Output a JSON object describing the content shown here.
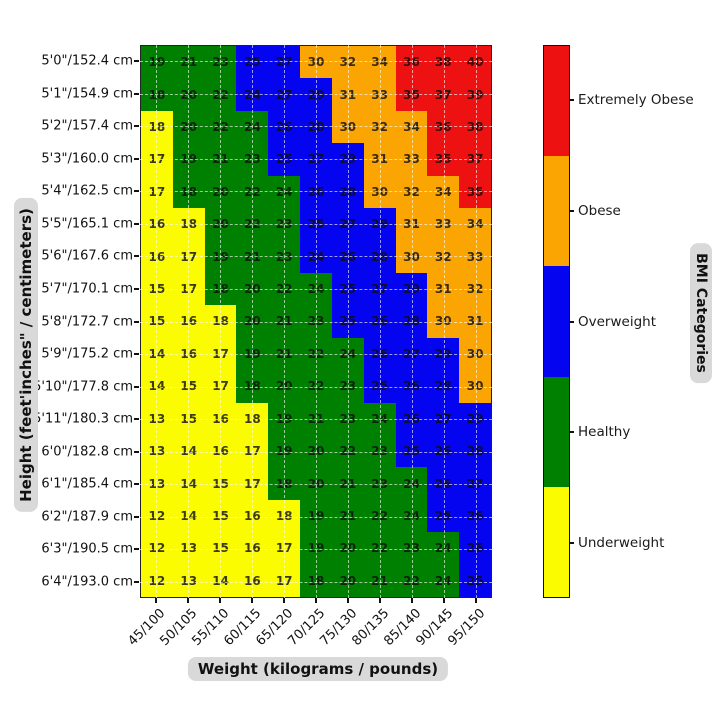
{
  "chart_data": {
    "type": "heatmap",
    "xlabel": "Weight (kilograms / pounds)",
    "ylabel": "Height (feet'inches\" / centimeters)",
    "colorbar_label": "BMI Categories",
    "x_tick_labels": [
      "45/100",
      "50/105",
      "55/110",
      "60/115",
      "65/120",
      "70/125",
      "75/130",
      "80/135",
      "85/140",
      "90/145",
      "95/150"
    ],
    "y_tick_labels": [
      "5'0\"/152.4 cm",
      "5'1\"/154.9 cm",
      "5'2\"/157.4 cm",
      "5'3\"/160.0 cm",
      "5'4\"/162.5 cm",
      "5'5\"/165.1 cm",
      "5'6\"/167.6 cm",
      "5'7\"/170.1 cm",
      "5'8\"/172.7 cm",
      "5'9\"/175.2 cm",
      "5'10\"/177.8 cm",
      "5'11\"/180.3 cm",
      "6'0\"/182.8 cm",
      "6'1\"/185.4 cm",
      "6'2\"/187.9 cm",
      "6'3\"/190.5 cm",
      "6'4\"/193.0 cm"
    ],
    "values": [
      [
        19,
        21,
        23,
        25,
        27,
        30,
        32,
        34,
        36,
        38,
        40
      ],
      [
        18,
        20,
        22,
        24,
        27,
        29,
        31,
        33,
        35,
        37,
        39
      ],
      [
        18,
        20,
        22,
        24,
        26,
        28,
        30,
        32,
        34,
        36,
        38
      ],
      [
        17,
        19,
        21,
        23,
        25,
        27,
        29,
        31,
        33,
        35,
        37
      ],
      [
        17,
        18,
        20,
        22,
        24,
        26,
        28,
        30,
        32,
        34,
        35
      ],
      [
        16,
        18,
        20,
        22,
        23,
        25,
        27,
        29,
        31,
        33,
        34
      ],
      [
        16,
        17,
        19,
        21,
        23,
        24,
        26,
        28,
        30,
        32,
        33
      ],
      [
        15,
        17,
        18,
        20,
        22,
        24,
        25,
        27,
        29,
        31,
        32
      ],
      [
        15,
        16,
        18,
        20,
        21,
        23,
        25,
        26,
        28,
        30,
        31
      ],
      [
        14,
        16,
        17,
        19,
        21,
        22,
        24,
        26,
        27,
        29,
        30
      ],
      [
        14,
        15,
        17,
        18,
        20,
        22,
        23,
        25,
        26,
        28,
        30
      ],
      [
        13,
        15,
        16,
        18,
        19,
        21,
        23,
        24,
        26,
        27,
        29
      ],
      [
        13,
        14,
        16,
        17,
        19,
        20,
        22,
        23,
        25,
        26,
        28
      ],
      [
        13,
        14,
        15,
        17,
        18,
        20,
        21,
        23,
        24,
        26,
        27
      ],
      [
        12,
        14,
        15,
        16,
        18,
        19,
        21,
        22,
        24,
        25,
        26
      ],
      [
        12,
        13,
        15,
        16,
        17,
        19,
        20,
        22,
        23,
        24,
        26
      ],
      [
        12,
        13,
        14,
        16,
        17,
        18,
        20,
        21,
        22,
        24,
        25
      ]
    ],
    "cell_categories": [
      [
        "h",
        "h",
        "h",
        "w",
        "w",
        "o",
        "o",
        "o",
        "e",
        "e",
        "e"
      ],
      [
        "h",
        "h",
        "h",
        "w",
        "w",
        "w",
        "o",
        "o",
        "e",
        "e",
        "e"
      ],
      [
        "u",
        "h",
        "h",
        "h",
        "w",
        "w",
        "o",
        "o",
        "o",
        "e",
        "e"
      ],
      [
        "u",
        "h",
        "h",
        "h",
        "w",
        "w",
        "w",
        "o",
        "o",
        "e",
        "e"
      ],
      [
        "u",
        "h",
        "h",
        "h",
        "h",
        "w",
        "w",
        "o",
        "o",
        "o",
        "e"
      ],
      [
        "u",
        "u",
        "h",
        "h",
        "h",
        "w",
        "w",
        "w",
        "o",
        "o",
        "o"
      ],
      [
        "u",
        "u",
        "h",
        "h",
        "h",
        "w",
        "w",
        "w",
        "o",
        "o",
        "o"
      ],
      [
        "u",
        "u",
        "h",
        "h",
        "h",
        "h",
        "w",
        "w",
        "w",
        "o",
        "o"
      ],
      [
        "u",
        "u",
        "u",
        "h",
        "h",
        "h",
        "w",
        "w",
        "w",
        "o",
        "o"
      ],
      [
        "u",
        "u",
        "u",
        "h",
        "h",
        "h",
        "h",
        "w",
        "w",
        "w",
        "o"
      ],
      [
        "u",
        "u",
        "u",
        "h",
        "h",
        "h",
        "h",
        "w",
        "w",
        "w",
        "o"
      ],
      [
        "u",
        "u",
        "u",
        "u",
        "h",
        "h",
        "h",
        "h",
        "w",
        "w",
        "w"
      ],
      [
        "u",
        "u",
        "u",
        "u",
        "h",
        "h",
        "h",
        "h",
        "w",
        "w",
        "w"
      ],
      [
        "u",
        "u",
        "u",
        "u",
        "h",
        "h",
        "h",
        "h",
        "h",
        "w",
        "w"
      ],
      [
        "u",
        "u",
        "u",
        "u",
        "u",
        "h",
        "h",
        "h",
        "h",
        "w",
        "w"
      ],
      [
        "u",
        "u",
        "u",
        "u",
        "u",
        "h",
        "h",
        "h",
        "h",
        "h",
        "w"
      ],
      [
        "u",
        "u",
        "u",
        "u",
        "u",
        "h",
        "h",
        "h",
        "h",
        "h",
        "w"
      ]
    ],
    "category_legend": [
      {
        "code": "e",
        "label": "Extremely Obese",
        "color": "#ee1111"
      },
      {
        "code": "o",
        "label": "Obese",
        "color": "#fba502"
      },
      {
        "code": "w",
        "label": "Overweight",
        "color": "#0404f0"
      },
      {
        "code": "h",
        "label": "Healthy",
        "color": "#008000"
      },
      {
        "code": "u",
        "label": "Underweight",
        "color": "#fcfc00"
      }
    ],
    "legend_position": "right",
    "grid": true
  }
}
